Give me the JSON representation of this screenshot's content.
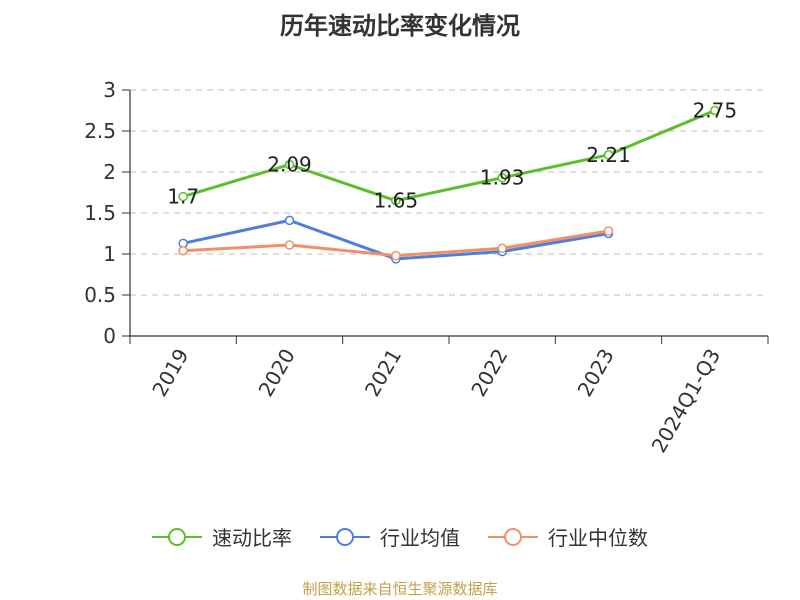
{
  "title": "历年速动比率变化情况",
  "source": "制图数据来自恒生聚源数据库",
  "chart_data": {
    "type": "line",
    "categories": [
      "2019",
      "2020",
      "2021",
      "2022",
      "2023",
      "2024Q1-Q3"
    ],
    "ylim": [
      0,
      3
    ],
    "yticks": [
      "0",
      "0.5",
      "1",
      "1.5",
      "2",
      "2.5",
      "3"
    ],
    "grid": true,
    "legend_position": "bottom",
    "series": [
      {
        "name": "速动比率",
        "color": "#5cbf2a",
        "values": [
          1.7,
          2.09,
          1.65,
          1.93,
          2.21,
          2.75
        ],
        "labels": [
          "1.7",
          "2.09",
          "1.65",
          "1.93",
          "2.21",
          "2.75"
        ]
      },
      {
        "name": "行业均值",
        "color": "#4f7fdc",
        "values": [
          1.13,
          1.41,
          0.94,
          1.03,
          1.25,
          null
        ],
        "labels": []
      },
      {
        "name": "行业中位数",
        "color": "#f0906a",
        "values": [
          1.04,
          1.11,
          0.98,
          1.07,
          1.28,
          null
        ],
        "labels": []
      }
    ]
  }
}
